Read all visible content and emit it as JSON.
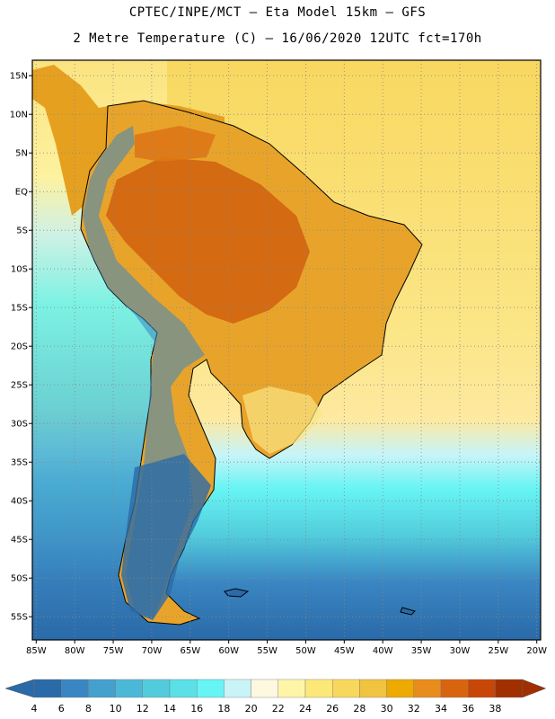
{
  "header": {
    "line1": "CPTEC/INPE/MCT –  Eta Model 15km – GFS",
    "line2": "2 Metre Temperature (C) – 16/06/2020 12UTC fct=170h"
  },
  "map": {
    "lat_labels": [
      "15N",
      "10N",
      "5N",
      "EQ",
      "5S",
      "10S",
      "15S",
      "20S",
      "25S",
      "30S",
      "35S",
      "40S",
      "45S",
      "50S",
      "55S"
    ],
    "lat_values": [
      15,
      10,
      5,
      0,
      -5,
      -10,
      -15,
      -20,
      -25,
      -30,
      -35,
      -40,
      -45,
      -50,
      -55
    ],
    "lon_labels": [
      "85W",
      "80W",
      "75W",
      "70W",
      "65W",
      "60W",
      "55W",
      "50W",
      "45W",
      "40W",
      "35W",
      "30W",
      "25W",
      "20W"
    ],
    "lon_values": [
      -85,
      -80,
      -75,
      -70,
      -65,
      -60,
      -55,
      -50,
      -45,
      -40,
      -35,
      -30,
      -25,
      -20
    ],
    "lat_range": [
      -58,
      17
    ],
    "lon_range": [
      -85.5,
      -19.5
    ],
    "grid": "dotted"
  },
  "colorbar": {
    "labels": [
      "4",
      "6",
      "8",
      "10",
      "12",
      "14",
      "16",
      "18",
      "20",
      "22",
      "24",
      "26",
      "28",
      "30",
      "32",
      "34",
      "36",
      "38"
    ],
    "colors": [
      "#2a6aa8",
      "#3a86c2",
      "#44a0cc",
      "#4cb8d8",
      "#52ccdc",
      "#5ae0e6",
      "#66f4f4",
      "#c8f4f8",
      "#fff8e0",
      "#fef5a8",
      "#fce878",
      "#f8d85c",
      "#f0c440",
      "#eeaa00",
      "#e88c1c",
      "#d86410",
      "#c84606",
      "#a03000"
    ]
  },
  "colors": {
    "frame": "#000000",
    "grid": "#888888",
    "coast": "#000000"
  }
}
